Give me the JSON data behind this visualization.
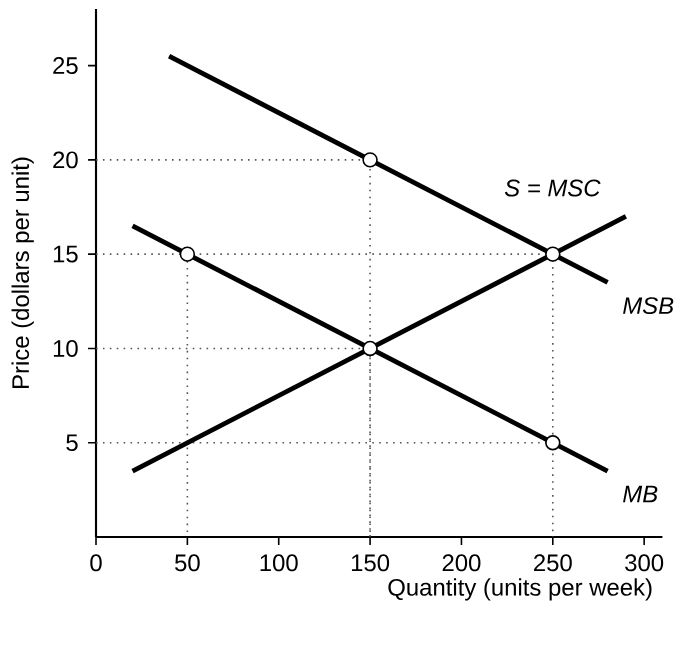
{
  "chart_data": {
    "type": "line",
    "xlabel": "Quantity (units per week)",
    "ylabel": "Price (dollars per unit)",
    "xlim": [
      0,
      310
    ],
    "ylim": [
      0,
      28
    ],
    "xticks": [
      0,
      50,
      100,
      150,
      200,
      250,
      300
    ],
    "yticks": [
      5,
      10,
      15,
      20,
      25
    ],
    "series": [
      {
        "line_style": "dotted",
        "color": "#555555",
        "x": [
          0,
          150,
          150
        ],
        "values": [
          20,
          20,
          0
        ]
      },
      {
        "line_style": "dotted",
        "color": "#555555",
        "x": [
          0,
          250,
          250
        ],
        "values": [
          15,
          15,
          0
        ]
      },
      {
        "line_style": "dotted",
        "color": "#555555",
        "x": [
          0,
          150,
          150
        ],
        "values": [
          10,
          10,
          0
        ]
      },
      {
        "line_style": "dotted",
        "color": "#555555",
        "x": [
          0,
          250
        ],
        "values": [
          5,
          5
        ]
      },
      {
        "line_style": "dotted",
        "color": "#555555",
        "x": [
          50,
          50
        ],
        "values": [
          15,
          0
        ]
      },
      {
        "name": "MSB",
        "line_style": "solid",
        "color": "#000000",
        "x": [
          40,
          280
        ],
        "values": [
          25.5,
          13.5
        ]
      },
      {
        "name": "S = MSC",
        "line_style": "solid",
        "color": "#000000",
        "x": [
          20,
          290
        ],
        "values": [
          3.5,
          17
        ]
      },
      {
        "name": "MB",
        "line_style": "solid",
        "color": "#000000",
        "x": [
          20,
          280
        ],
        "values": [
          16.5,
          3.5
        ]
      },
      {
        "type": "scatter",
        "marker": "circle",
        "color": "#000000",
        "x": [
          50,
          150,
          150,
          250,
          250
        ],
        "values": [
          15,
          20,
          10,
          15,
          5
        ]
      }
    ]
  }
}
